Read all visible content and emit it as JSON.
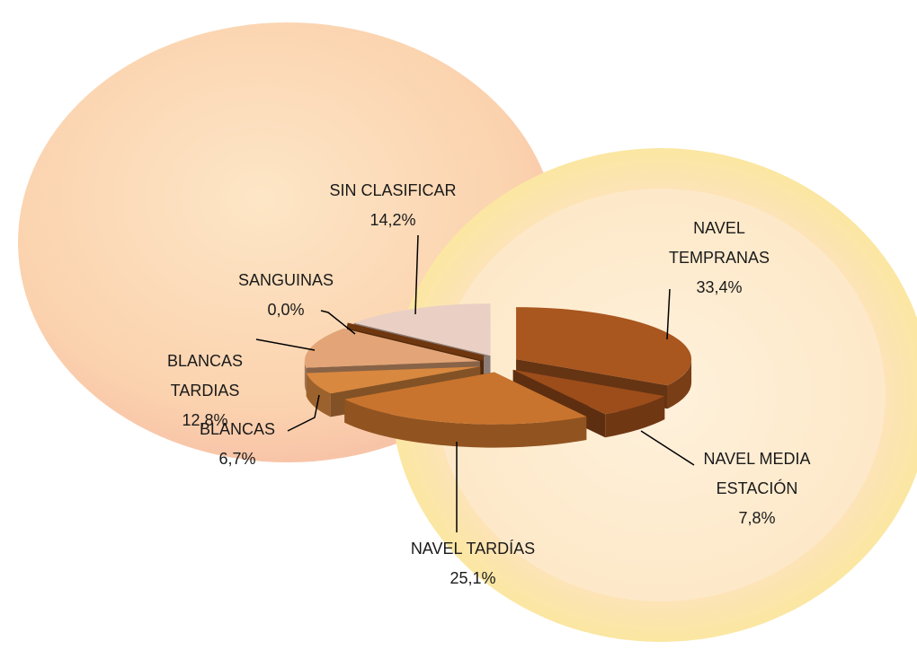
{
  "chart_data": {
    "type": "pie",
    "categories": [
      "NAVEL TEMPRANAS",
      "NAVEL MEDIA ESTACIÓN",
      "NAVEL TARDÍAS",
      "BLANCAS",
      "BLANCAS TARDIAS",
      "SANGUINAS",
      "SIN CLASIFICAR"
    ],
    "values": [
      33.4,
      7.8,
      25.1,
      6.7,
      12.8,
      0.0,
      14.2
    ],
    "value_labels": [
      "33,4%",
      "7,8%",
      "25,1%",
      "6,7%",
      "12,8%",
      "0,0%",
      "14,2%"
    ],
    "colors": [
      "#a9561f",
      "#9c4d1a",
      "#c9742e",
      "#d9883f",
      "#e3a577",
      "#8b4513",
      "#ead0c4"
    ]
  }
}
